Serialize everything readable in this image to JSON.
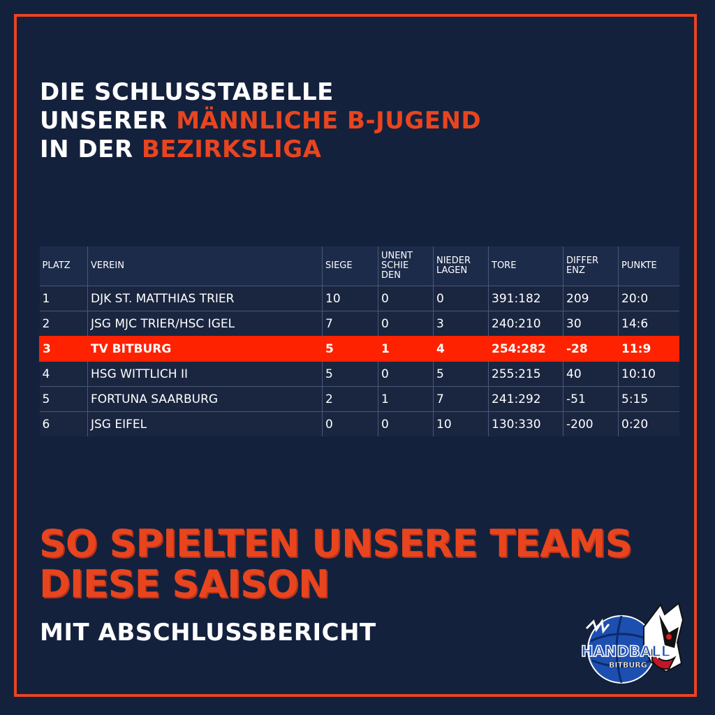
{
  "headline": {
    "line1": "DIE SCHLUSSTABELLE",
    "line2_prefix": "UNSERER ",
    "line2_accent": "MÄNNLICHE B-JUGEND",
    "line3_prefix": "IN DER ",
    "line3_accent": "BEZIRKSLIGA"
  },
  "table": {
    "headers": [
      "PLATZ",
      "VEREIN",
      "SIEGE",
      "UNENT\nSCHIE\nDEN",
      "NIEDER\nLAGEN",
      "TORE",
      "DIFFER\nENZ",
      "PUNKTE"
    ],
    "rows": [
      [
        "1",
        "DJK ST. MATTHIAS TRIER",
        "10",
        "0",
        "0",
        "391:182",
        "209",
        "20:0"
      ],
      [
        "2",
        "JSG MJC TRIER/HSC IGEL",
        "7",
        "0",
        "3",
        "240:210",
        "30",
        "14:6"
      ],
      [
        "3",
        "TV BITBURG",
        "5",
        "1",
        "4",
        "254:282",
        "-28",
        "11:9"
      ],
      [
        "4",
        "HSG WITTLICH II",
        "5",
        "0",
        "5",
        "255:215",
        "40",
        "10:10"
      ],
      [
        "5",
        "FORTUNA SAARBURG",
        "2",
        "1",
        "7",
        "241:292",
        "-51",
        "5:15"
      ],
      [
        "6",
        "JSG EIFEL",
        "0",
        "0",
        "10",
        "130:330",
        "-200",
        "0:20"
      ]
    ],
    "highlight_row_index": 2
  },
  "promo": {
    "line1": "SO SPIELTEN UNSERE TEAMS",
    "line2": "DIESE SAISON",
    "subtitle": "MIT ABSCHLUSSBERICHT"
  },
  "logo": {
    "top_text": "HANDBALL",
    "bottom_text": "BITBURG"
  },
  "colors": {
    "background": "#14213d",
    "accent": "#e8451f",
    "highlight": "#ff2200"
  }
}
